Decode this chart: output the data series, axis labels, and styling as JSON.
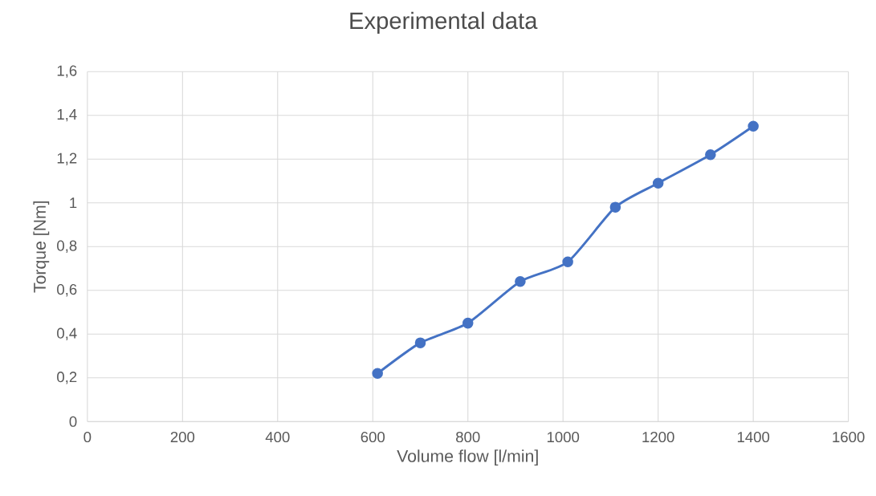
{
  "chart_data": {
    "type": "line",
    "title": "Experimental data",
    "xlabel": "Volume flow [l/min]",
    "ylabel": "Torque [Nm]",
    "x": [
      610,
      700,
      800,
      910,
      1010,
      1110,
      1200,
      1310,
      1400
    ],
    "series": [
      {
        "color": "#4472c4",
        "values": [
          0.22,
          0.36,
          0.45,
          0.64,
          0.73,
          0.98,
          1.09,
          1.22,
          1.35
        ]
      }
    ],
    "xlim": [
      0,
      1600
    ],
    "xticks": [
      0,
      200,
      400,
      600,
      800,
      1000,
      1200,
      1400,
      1600
    ],
    "ylim": [
      0,
      1.6
    ],
    "yticks": [
      0,
      {
        "value": 0.2,
        "label": "0,2"
      },
      {
        "value": 0.4,
        "label": "0,4"
      },
      {
        "value": 0.6,
        "label": "0,6"
      },
      {
        "value": 0.8,
        "label": "0,8"
      },
      1,
      {
        "value": 1.2,
        "label": "1,2"
      },
      {
        "value": 1.4,
        "label": "1,4"
      },
      {
        "value": 1.6,
        "label": "1,6"
      }
    ],
    "grid": true,
    "marker": "circle",
    "line_style": "solid"
  }
}
